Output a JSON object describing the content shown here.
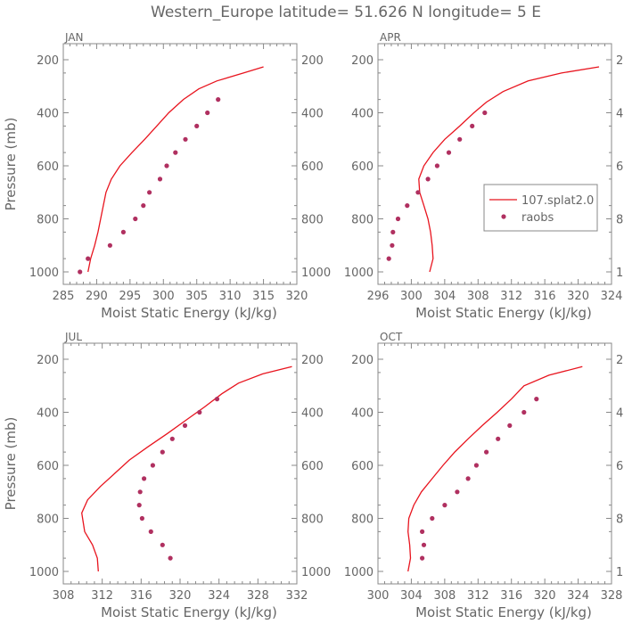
{
  "title": "Western_Europe  latitude= 51.626 N longitude= 5 E",
  "colors": {
    "model": "#e8141e",
    "raobs": "#b03060",
    "axis": "#888888",
    "text": "#666666"
  },
  "legend": {
    "model_label": "107.splat2.0",
    "raobs_label": "raobs",
    "placement": "middle-right of APR panel"
  },
  "chart_data": [
    {
      "type": "line",
      "panel_label": "JAN",
      "xlabel": "Moist Static Energy (kJ/kg)",
      "ylabel": "Pressure (mb)",
      "xlim": [
        285,
        320
      ],
      "xticks": [
        285,
        290,
        295,
        300,
        305,
        310,
        315,
        320
      ],
      "ylim": [
        200,
        1000
      ],
      "y_inverted": true,
      "yticks": [
        200,
        400,
        600,
        800,
        1000
      ],
      "grid": false,
      "series": [
        {
          "name": "107.splat2.0",
          "kind": "line",
          "x": [
            315.0,
            312.0,
            308.0,
            305.3,
            303.0,
            300.8,
            299.0,
            297.2,
            295.3,
            293.5,
            292.2,
            291.4,
            291.0,
            290.6,
            290.2,
            289.7,
            289.1,
            288.7
          ],
          "y": [
            227,
            250,
            280,
            310,
            350,
            400,
            450,
            500,
            550,
            600,
            650,
            700,
            750,
            800,
            850,
            900,
            950,
            1000
          ]
        },
        {
          "name": "raobs",
          "kind": "scatter",
          "x": [
            308.2,
            306.6,
            305.0,
            303.3,
            301.8,
            300.5,
            299.5,
            297.9,
            297.0,
            295.8,
            294.0,
            292.0,
            288.7,
            287.5
          ],
          "y": [
            350,
            400,
            450,
            500,
            550,
            600,
            650,
            700,
            750,
            800,
            850,
            900,
            950,
            1000
          ]
        }
      ]
    },
    {
      "type": "line",
      "panel_label": "APR",
      "xlabel": "Moist Static Energy (kJ/kg)",
      "ylabel": "",
      "xlim": [
        296,
        324
      ],
      "xticks": [
        296,
        300,
        304,
        308,
        312,
        316,
        320,
        324
      ],
      "ylim": [
        200,
        1000
      ],
      "y_inverted": true,
      "yticks": [
        200,
        400,
        600,
        800,
        1000
      ],
      "grid": false,
      "series": [
        {
          "name": "107.splat2.0",
          "kind": "line",
          "x": [
            322.5,
            318.0,
            314.0,
            311.0,
            309.0,
            307.5,
            305.8,
            304.0,
            302.6,
            301.5,
            300.9,
            301.0,
            301.5,
            302.0,
            302.3,
            302.5,
            302.6,
            302.2
          ],
          "y": [
            227,
            250,
            280,
            320,
            360,
            400,
            450,
            500,
            550,
            600,
            650,
            700,
            750,
            800,
            850,
            900,
            950,
            1000
          ]
        },
        {
          "name": "raobs",
          "kind": "scatter",
          "x": [
            308.8,
            307.3,
            305.8,
            304.5,
            303.1,
            302.0,
            300.8,
            299.5,
            298.4,
            297.8,
            297.7,
            297.3
          ],
          "y": [
            400,
            450,
            500,
            550,
            600,
            650,
            700,
            750,
            800,
            850,
            900,
            950
          ]
        }
      ]
    },
    {
      "type": "line",
      "panel_label": "JUL",
      "xlabel": "Moist Static Energy (kJ/kg)",
      "ylabel": "Pressure (mb)",
      "xlim": [
        308,
        332
      ],
      "xticks": [
        308,
        312,
        316,
        320,
        324,
        328,
        332
      ],
      "ylim": [
        200,
        1000
      ],
      "y_inverted": true,
      "yticks": [
        200,
        400,
        600,
        800,
        1000
      ],
      "grid": false,
      "series": [
        {
          "name": "107.splat2.0",
          "kind": "line",
          "x": [
            331.5,
            328.5,
            326.0,
            324.3,
            322.5,
            320.6,
            318.7,
            316.7,
            314.8,
            313.3,
            311.8,
            310.5,
            309.9,
            310.2,
            311.0,
            311.5,
            311.6
          ],
          "y": [
            228,
            255,
            290,
            330,
            380,
            430,
            480,
            530,
            580,
            630,
            680,
            730,
            780,
            850,
            900,
            950,
            1000
          ]
        },
        {
          "name": "raobs",
          "kind": "scatter",
          "x": [
            323.8,
            322.0,
            320.5,
            319.2,
            318.2,
            317.2,
            316.3,
            315.9,
            315.8,
            316.1,
            317.0,
            318.2,
            319.0
          ],
          "y": [
            350,
            400,
            450,
            500,
            550,
            600,
            650,
            700,
            750,
            800,
            850,
            900,
            950
          ]
        }
      ]
    },
    {
      "type": "line",
      "panel_label": "OCT",
      "xlabel": "Moist Static Energy (kJ/kg)",
      "ylabel": "",
      "xlim": [
        300,
        328
      ],
      "xticks": [
        300,
        304,
        308,
        312,
        316,
        320,
        324,
        328
      ],
      "ylim": [
        200,
        1000
      ],
      "y_inverted": true,
      "yticks": [
        200,
        400,
        600,
        800,
        1000
      ],
      "grid": false,
      "series": [
        {
          "name": "107.splat2.0",
          "kind": "line",
          "x": [
            324.5,
            320.5,
            317.5,
            316.0,
            314.3,
            312.5,
            310.8,
            309.2,
            307.8,
            306.5,
            305.2,
            304.3,
            303.7,
            303.6,
            303.8,
            303.9,
            303.6
          ],
          "y": [
            228,
            260,
            300,
            350,
            400,
            450,
            500,
            550,
            600,
            650,
            700,
            750,
            800,
            850,
            900,
            950,
            1000
          ]
        },
        {
          "name": "raobs",
          "kind": "scatter",
          "x": [
            319.0,
            317.5,
            315.8,
            314.4,
            313.0,
            311.8,
            310.8,
            309.5,
            308.0,
            306.5,
            305.3,
            305.5,
            305.3
          ],
          "y": [
            350,
            400,
            450,
            500,
            550,
            600,
            650,
            700,
            750,
            800,
            850,
            900,
            950
          ]
        }
      ]
    }
  ]
}
